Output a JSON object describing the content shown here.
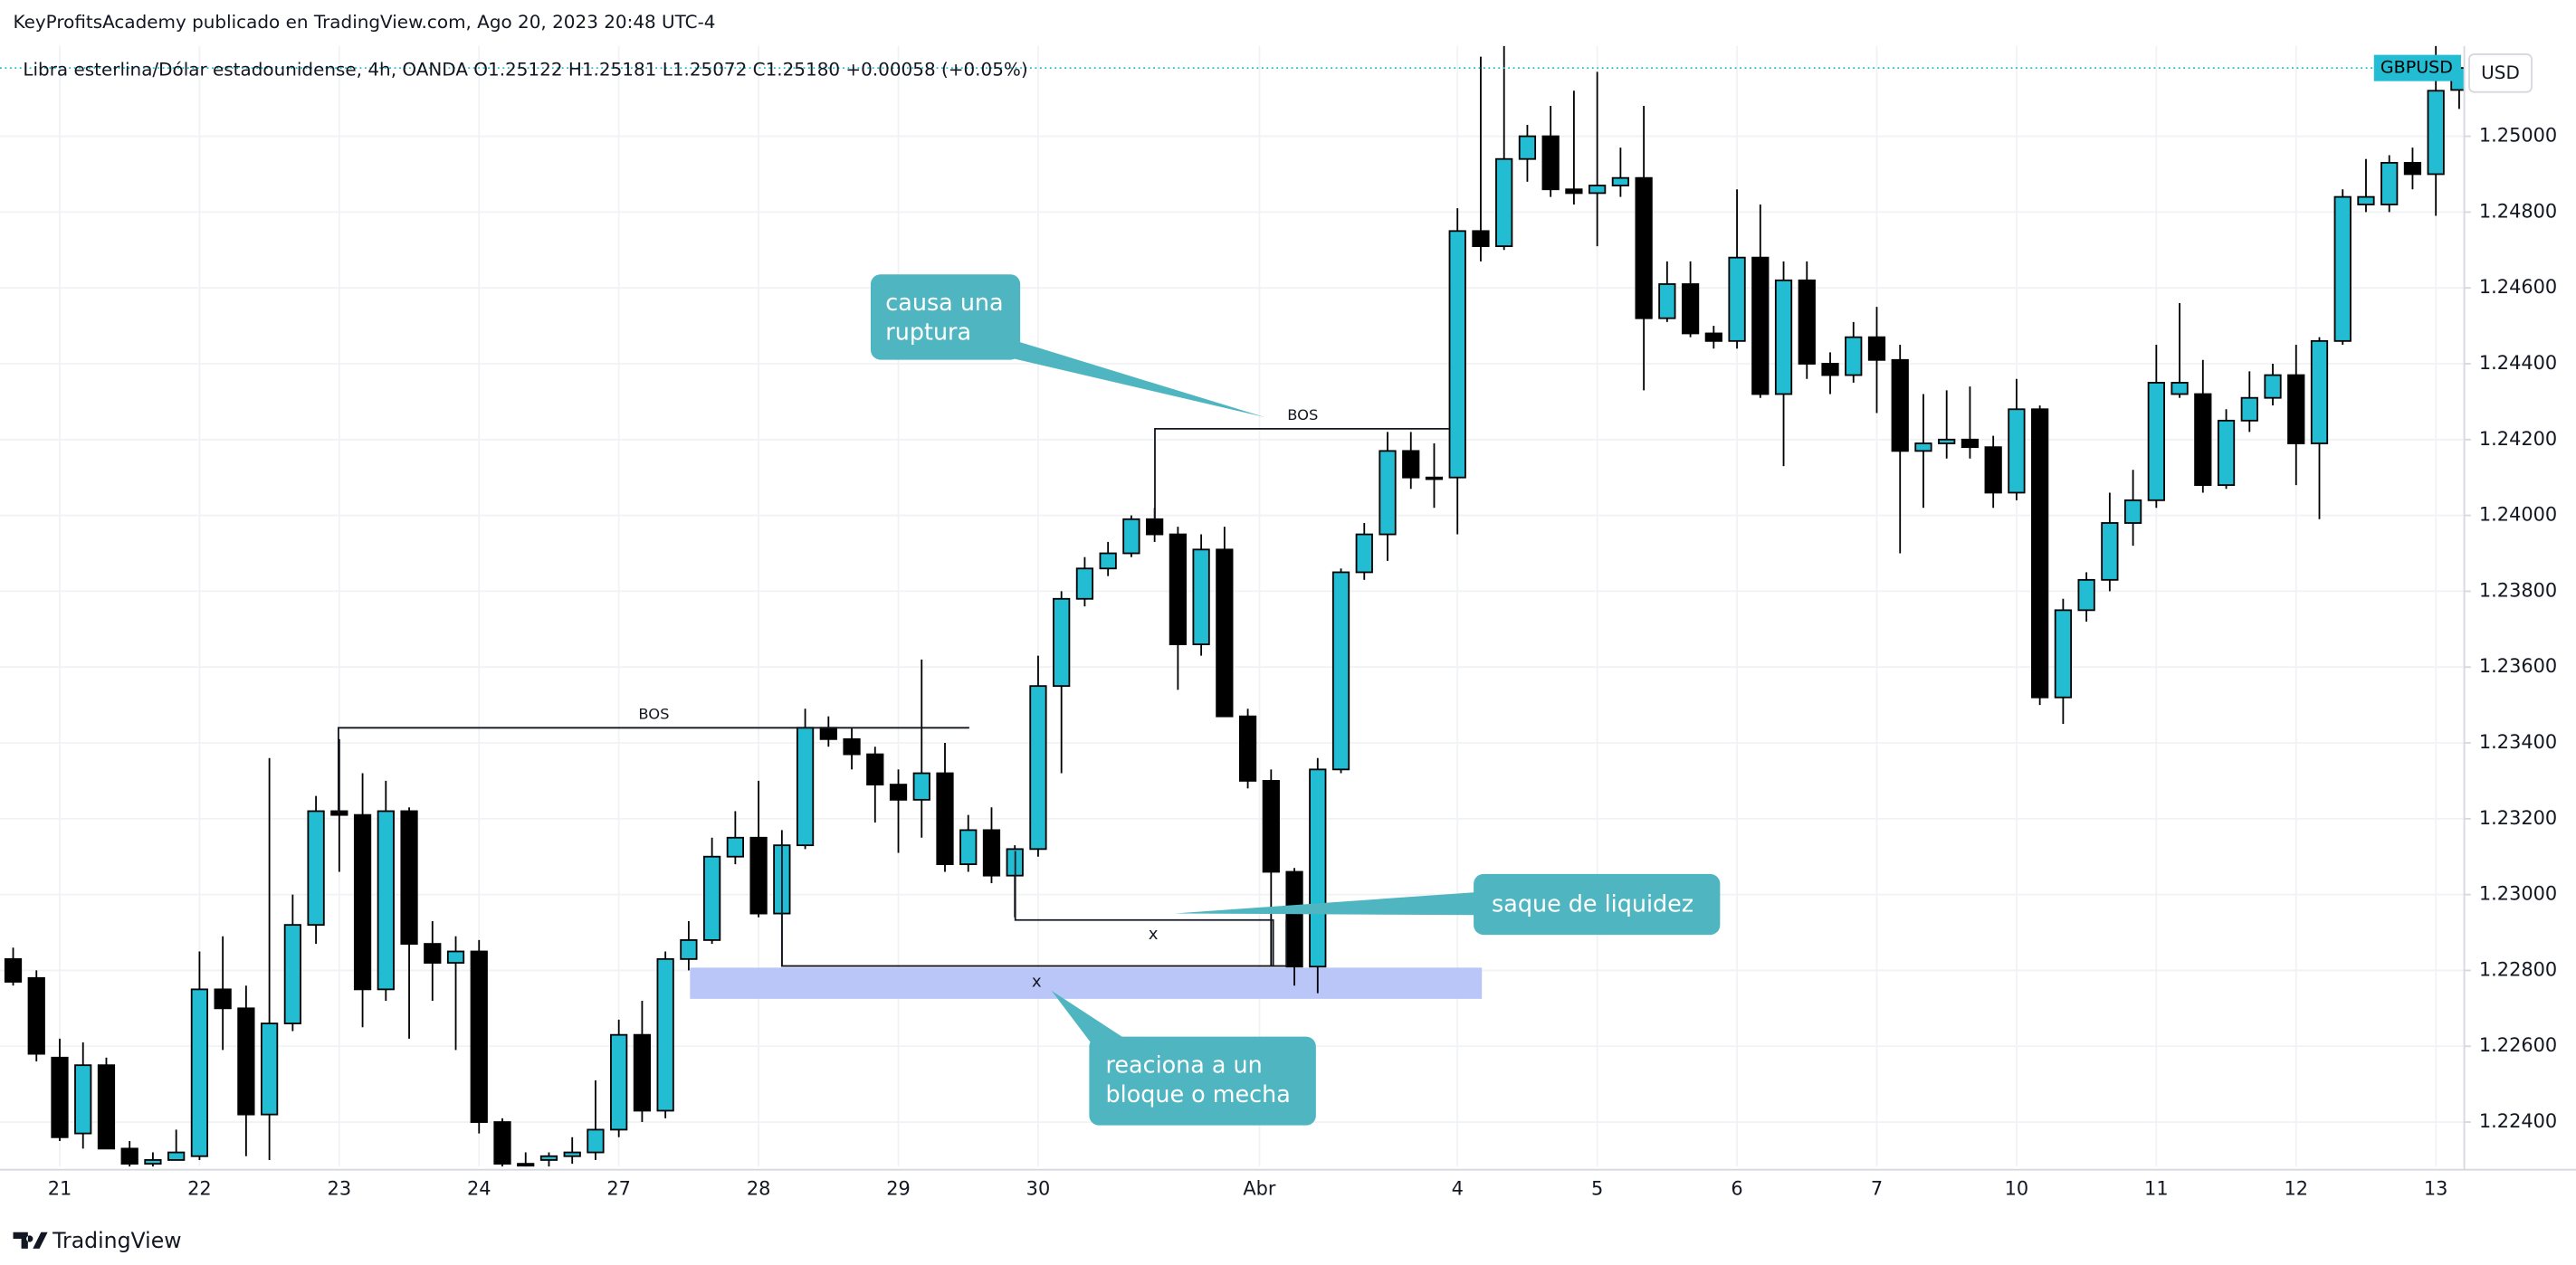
{
  "header": "KeyProfitsAcademy publicado en TradingView.com, Ago 20, 2023 20:48 UTC-4",
  "footer": "TradingView",
  "chart_data": {
    "type": "candlestick",
    "title": "Libra esterlina/Dólar estadounidense, 4h, OANDA  O1.25122  H1.25181  L1.25072  C1.25180  +0.00058 (+0.05%)",
    "symbol_tag": "GBPUSD",
    "currency": "USD",
    "up_color": "#22bdd3",
    "down_color": "#000000",
    "grid": true,
    "open": [
      1.2283,
      1.2278,
      1.2257,
      1.2237,
      1.2255,
      1.2233,
      1.2229,
      1.223,
      1.2231,
      1.2275,
      1.227,
      1.2242,
      1.2266,
      1.2292,
      1.2322,
      1.2321,
      1.2275,
      1.2322,
      1.2287,
      1.2282,
      1.2285,
      1.224,
      1.2229,
      1.223,
      1.2231,
      1.2232,
      1.2238,
      1.2263,
      1.2243,
      1.2283,
      1.2288,
      1.231,
      1.2315,
      1.2295,
      1.2313,
      1.2344,
      1.2341,
      1.2337,
      1.2329,
      1.2325,
      1.2332,
      1.2308,
      1.2317,
      1.2305,
      1.2312,
      1.2355,
      1.2378,
      1.2386,
      1.239,
      1.2399,
      1.2395,
      1.2366,
      1.2391,
      1.2347,
      1.233,
      1.2306,
      1.2281,
      1.2333,
      1.2385,
      1.2395,
      1.2417,
      1.241,
      1.241,
      1.2475,
      1.2471,
      1.2494,
      1.25,
      1.2486,
      1.2485,
      1.2487,
      1.2489,
      1.2452,
      1.2461,
      1.2448,
      1.2446,
      1.2468,
      1.2432,
      1.2462,
      1.244,
      1.2437,
      1.2447,
      1.2441,
      1.2417,
      1.2419,
      1.242,
      1.2418,
      1.2406,
      1.2428,
      1.2352,
      1.2375,
      1.2383,
      1.2398,
      1.2404,
      1.2432,
      1.2432,
      1.2408,
      1.2425,
      1.2431,
      1.2437,
      1.2419,
      1.2446,
      1.2482,
      1.2482,
      1.2493,
      1.249,
      1.25122
    ],
    "high": [
      1.2286,
      1.228,
      1.2262,
      1.2261,
      1.2257,
      1.2235,
      1.2232,
      1.2238,
      1.2285,
      1.2289,
      1.2276,
      1.2336,
      1.23,
      1.2326,
      1.2341,
      1.2332,
      1.233,
      1.2323,
      1.2293,
      1.2289,
      1.2288,
      1.2241,
      1.2232,
      1.2232,
      1.2236,
      1.2251,
      1.2267,
      1.2272,
      1.2285,
      1.2293,
      1.2315,
      1.2322,
      1.233,
      1.2317,
      1.2349,
      1.2347,
      1.2344,
      1.2339,
      1.2333,
      1.2362,
      1.234,
      1.2321,
      1.2323,
      1.2313,
      1.2363,
      1.238,
      1.2389,
      1.2393,
      1.24,
      1.2402,
      1.2397,
      1.2395,
      1.2397,
      1.2349,
      1.2333,
      1.2307,
      1.2336,
      1.2386,
      1.2398,
      1.2422,
      1.2422,
      1.2419,
      1.2481,
      1.2521,
      1.2524,
      1.2503,
      1.2508,
      1.2512,
      1.2517,
      1.2497,
      1.2508,
      1.2467,
      1.2467,
      1.245,
      1.2486,
      1.2482,
      1.2467,
      1.2467,
      1.2443,
      1.2451,
      1.2455,
      1.2445,
      1.2432,
      1.2433,
      1.2434,
      1.2421,
      1.2436,
      1.2429,
      1.2378,
      1.2385,
      1.2406,
      1.2412,
      1.2445,
      1.2456,
      1.2441,
      1.2428,
      1.2438,
      1.244,
      1.2445,
      1.2447,
      1.2486,
      1.2494,
      1.2495,
      1.2497,
      1.2524,
      1.25181
    ],
    "low": [
      1.2276,
      1.2256,
      1.2235,
      1.2233,
      1.2233,
      1.2224,
      1.2225,
      1.223,
      1.223,
      1.2259,
      1.2231,
      1.223,
      1.2264,
      1.2287,
      1.2306,
      1.2265,
      1.2272,
      1.2262,
      1.2272,
      1.2259,
      1.2237,
      1.2228,
      1.2225,
      1.2228,
      1.2229,
      1.223,
      1.2236,
      1.224,
      1.2241,
      1.228,
      1.2287,
      1.2308,
      1.2294,
      1.2281,
      1.2312,
      1.2339,
      1.2333,
      1.2319,
      1.2311,
      1.2315,
      1.2306,
      1.2306,
      1.2303,
      1.2294,
      1.231,
      1.2332,
      1.2376,
      1.2384,
      1.2389,
      1.2393,
      1.2354,
      1.2363,
      1.2347,
      1.2328,
      1.2281,
      1.2276,
      1.2274,
      1.2332,
      1.2383,
      1.2388,
      1.2407,
      1.2402,
      1.2395,
      1.2467,
      1.247,
      1.2488,
      1.2484,
      1.2482,
      1.2471,
      1.2484,
      1.2433,
      1.2451,
      1.2447,
      1.2444,
      1.2444,
      1.2431,
      1.2413,
      1.2436,
      1.2432,
      1.2435,
      1.2427,
      1.239,
      1.2402,
      1.2415,
      1.2415,
      1.2402,
      1.2404,
      1.235,
      1.2345,
      1.2372,
      1.238,
      1.2392,
      1.2402,
      1.2431,
      1.2406,
      1.2407,
      1.2422,
      1.2429,
      1.2408,
      1.2399,
      1.2445,
      1.248,
      1.248,
      1.2486,
      1.2479,
      1.25072
    ],
    "close": [
      1.2277,
      1.2258,
      1.2236,
      1.2255,
      1.2233,
      1.2229,
      1.223,
      1.2232,
      1.2275,
      1.227,
      1.2242,
      1.2266,
      1.2292,
      1.2322,
      1.2321,
      1.2275,
      1.2322,
      1.2287,
      1.2282,
      1.2285,
      1.224,
      1.2229,
      1.2228,
      1.2231,
      1.2232,
      1.2238,
      1.2263,
      1.2243,
      1.2283,
      1.2288,
      1.231,
      1.2315,
      1.2295,
      1.2313,
      1.2344,
      1.2341,
      1.2337,
      1.2329,
      1.2325,
      1.2332,
      1.2308,
      1.2317,
      1.2305,
      1.2312,
      1.2355,
      1.2378,
      1.2386,
      1.239,
      1.2399,
      1.2395,
      1.2366,
      1.2391,
      1.2347,
      1.233,
      1.2306,
      1.2281,
      1.2333,
      1.2385,
      1.2395,
      1.2417,
      1.241,
      1.241,
      1.2475,
      1.2471,
      1.2494,
      1.25,
      1.2486,
      1.2485,
      1.2487,
      1.2489,
      1.2452,
      1.2461,
      1.2448,
      1.2446,
      1.2468,
      1.2432,
      1.2462,
      1.244,
      1.2437,
      1.2447,
      1.2441,
      1.2417,
      1.2419,
      1.242,
      1.2418,
      1.2406,
      1.2428,
      1.2352,
      1.2375,
      1.2383,
      1.2398,
      1.2404,
      1.2435,
      1.2435,
      1.2408,
      1.2425,
      1.2431,
      1.2437,
      1.2419,
      1.2446,
      1.2484,
      1.2484,
      1.2493,
      1.249,
      1.2512,
      1.2518
    ],
    "xlim": [
      -0.564,
      105.22
    ],
    "xticks": [
      {
        "value": 2,
        "label": "21"
      },
      {
        "value": 8,
        "label": "22"
      },
      {
        "value": 14,
        "label": "23"
      },
      {
        "value": 20,
        "label": "24"
      },
      {
        "value": 26,
        "label": "27"
      },
      {
        "value": 32,
        "label": "28"
      },
      {
        "value": 38,
        "label": "29"
      },
      {
        "value": 44,
        "label": "30"
      },
      {
        "value": 53.5,
        "label": "Abr"
      },
      {
        "value": 62,
        "label": "4"
      },
      {
        "value": 68,
        "label": "5"
      },
      {
        "value": 74,
        "label": "6"
      },
      {
        "value": 80,
        "label": "7"
      },
      {
        "value": 86,
        "label": "10"
      },
      {
        "value": 92,
        "label": "11"
      },
      {
        "value": 98,
        "label": "12"
      },
      {
        "value": 104,
        "label": "13"
      }
    ],
    "ylim": [
      1.22283,
      1.25238
    ],
    "yticks": [
      {
        "value": 1.224,
        "label": "1.22400"
      },
      {
        "value": 1.226,
        "label": "1.22600"
      },
      {
        "value": 1.228,
        "label": "1.22800"
      },
      {
        "value": 1.23,
        "label": "1.23000"
      },
      {
        "value": 1.232,
        "label": "1.23200"
      },
      {
        "value": 1.234,
        "label": "1.23400"
      },
      {
        "value": 1.236,
        "label": "1.23600"
      },
      {
        "value": 1.238,
        "label": "1.23800"
      },
      {
        "value": 1.24,
        "label": "1.24000"
      },
      {
        "value": 1.242,
        "label": "1.24200"
      },
      {
        "value": 1.244,
        "label": "1.24400"
      },
      {
        "value": 1.246,
        "label": "1.24600"
      },
      {
        "value": 1.248,
        "label": "1.24800"
      },
      {
        "value": 1.25,
        "label": "1.25000"
      }
    ],
    "annotations": {
      "bos": [
        "BOS",
        "BOS"
      ],
      "marks": [
        "x",
        "x"
      ],
      "callouts": [
        {
          "lines": [
            "causa una",
            "ruptura"
          ]
        },
        {
          "lines": [
            "saque de liquidez"
          ]
        },
        {
          "lines": [
            "reaciona a un",
            "bloque o mecha"
          ]
        }
      ]
    }
  }
}
